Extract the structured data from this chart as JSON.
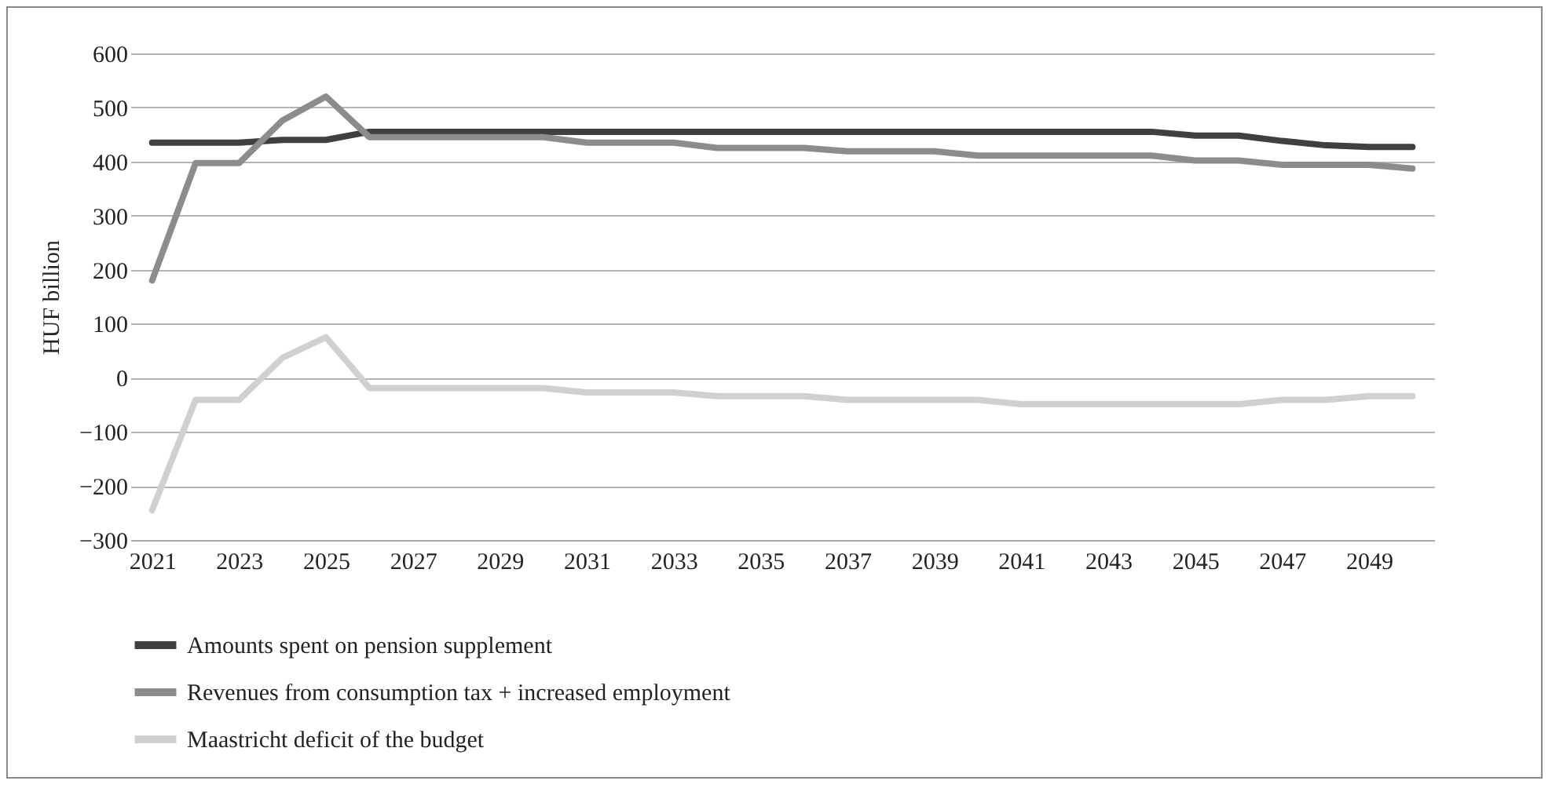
{
  "chart_data": {
    "type": "line",
    "ylabel": "HUF billion",
    "categories": [
      "2021",
      null,
      "2023",
      null,
      "2025",
      null,
      "2027",
      null,
      "2029",
      null,
      "2031",
      null,
      "2033",
      null,
      "2035",
      null,
      "2037",
      null,
      "2039",
      null,
      "2041",
      null,
      "2043",
      null,
      "2045",
      null,
      "2047",
      null,
      "2049",
      null
    ],
    "series": [
      {
        "name": "Amounts spent on pension supplement",
        "color": "#404040",
        "values": [
          435,
          435,
          435,
          440,
          440,
          455,
          455,
          455,
          455,
          455,
          455,
          455,
          455,
          455,
          455,
          455,
          455,
          455,
          455,
          455,
          455,
          455,
          455,
          455,
          448,
          448,
          438,
          430,
          427,
          427
        ]
      },
      {
        "name": "Revenues from consumption tax + increased employment",
        "color": "#8c8c8c",
        "values": [
          180,
          397,
          397,
          476,
          520,
          445,
          445,
          445,
          445,
          445,
          435,
          435,
          435,
          425,
          425,
          425,
          419,
          419,
          419,
          411,
          411,
          411,
          411,
          411,
          402,
          402,
          394,
          394,
          394,
          387
        ]
      },
      {
        "name": "Maastricht deficit of the budget",
        "color": "#d0d0d0",
        "values": [
          -245,
          -41,
          -41,
          37,
          75,
          -19,
          -19,
          -19,
          -19,
          -19,
          -27,
          -27,
          -27,
          -34,
          -34,
          -34,
          -41,
          -41,
          -41,
          -41,
          -49,
          -49,
          -49,
          -49,
          -49,
          -49,
          -41,
          -41,
          -34,
          -34
        ]
      }
    ],
    "ylim": [
      -300,
      600
    ],
    "yticks": [
      {
        "value": -300,
        "label": "−300"
      },
      {
        "value": -200,
        "label": "−200"
      },
      {
        "value": -100,
        "label": "−100"
      },
      0,
      100,
      200,
      300,
      400,
      500,
      600
    ],
    "grid": "y",
    "legend": "bottom",
    "line_style": "solid",
    "marker": "none"
  }
}
